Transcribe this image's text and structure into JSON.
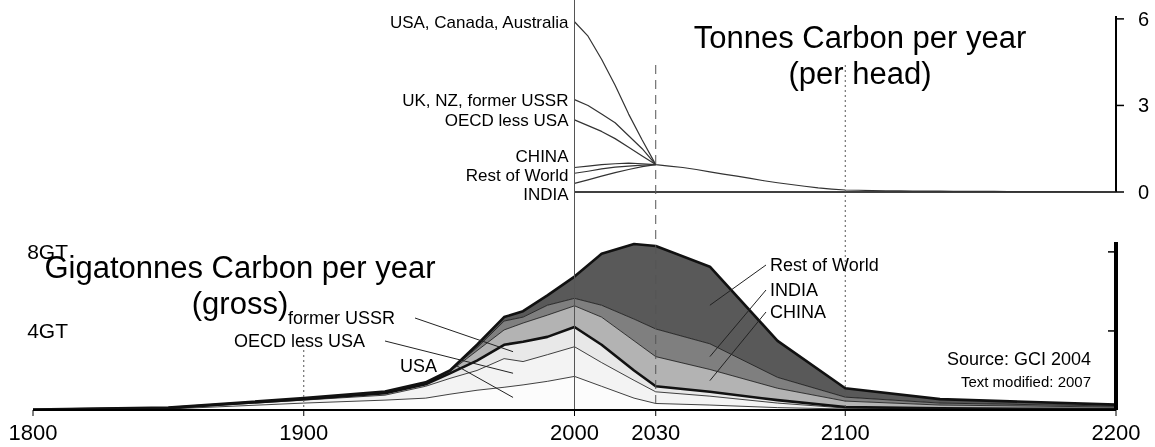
{
  "chart_data": [
    {
      "type": "line",
      "title": "Tonnes Carbon per year",
      "subtitle": "(per head)",
      "tick_labels": "y",
      "categories": [
        null,
        null,
        null,
        null,
        null,
        null,
        null,
        null,
        null,
        null,
        null,
        null,
        null,
        null,
        null,
        null,
        null,
        null,
        null,
        null,
        null,
        null,
        null,
        null,
        null,
        null,
        null,
        null,
        null,
        null,
        null,
        null,
        null,
        null,
        null,
        null,
        null,
        null,
        null,
        null,
        null
      ],
      "ylim": [
        0,
        6.1
      ],
      "yticks": [
        0,
        3,
        6
      ],
      "series": [
        {
          "name": "USA, Canada, Australia",
          "color": "#333333",
          "values": [
            5.9,
            5.4,
            4.6,
            3.7,
            2.7,
            1.8,
            0.95,
            0.9,
            0.85,
            0.78,
            0.7,
            0.62,
            0.55,
            0.47,
            0.39,
            0.32,
            0.26,
            0.2,
            0.14,
            0.1,
            0.07,
            0.06,
            0.05,
            0.04,
            0.04,
            0.03,
            0.03,
            0.03,
            0.02,
            0.02,
            0.02,
            0.02,
            0.01,
            0.01,
            0.01,
            0.01,
            0.01,
            0.01,
            0,
            0,
            0
          ]
        },
        {
          "name": "UK, NZ, former USSR",
          "color": "#333333",
          "values": [
            3.2,
            3.0,
            2.7,
            2.4,
            1.95,
            1.5,
            0.95,
            null,
            null,
            null,
            null,
            null,
            null,
            null,
            null,
            null,
            null,
            null,
            null,
            null,
            null,
            null,
            null,
            null,
            null,
            null,
            null,
            null,
            null,
            null,
            null,
            null,
            null,
            null,
            null,
            null,
            null,
            null,
            null,
            null,
            null
          ]
        },
        {
          "name": "OECD less USA",
          "color": "#333333",
          "values": [
            2.5,
            2.3,
            2.1,
            1.85,
            1.55,
            1.25,
            0.95,
            null,
            null,
            null,
            null,
            null,
            null,
            null,
            null,
            null,
            null,
            null,
            null,
            null,
            null,
            null,
            null,
            null,
            null,
            null,
            null,
            null,
            null,
            null,
            null,
            null,
            null,
            null,
            null,
            null,
            null,
            null,
            null,
            null,
            null
          ]
        },
        {
          "name": "CHINA",
          "color": "#333333",
          "values": [
            0.85,
            0.9,
            0.95,
            0.98,
            1.0,
            0.98,
            0.95,
            null,
            null,
            null,
            null,
            null,
            null,
            null,
            null,
            null,
            null,
            null,
            null,
            null,
            null,
            null,
            null,
            null,
            null,
            null,
            null,
            null,
            null,
            null,
            null,
            null,
            null,
            null,
            null,
            null,
            null,
            null,
            null,
            null,
            null
          ]
        },
        {
          "name": "Rest of World",
          "color": "#333333",
          "values": [
            0.65,
            0.72,
            0.8,
            0.86,
            0.9,
            0.93,
            0.95,
            null,
            null,
            null,
            null,
            null,
            null,
            null,
            null,
            null,
            null,
            null,
            null,
            null,
            null,
            null,
            null,
            null,
            null,
            null,
            null,
            null,
            null,
            null,
            null,
            null,
            null,
            null,
            null,
            null,
            null,
            null,
            null,
            null,
            null
          ]
        },
        {
          "name": "INDIA",
          "color": "#333333",
          "values": [
            0.3,
            0.42,
            0.55,
            0.67,
            0.78,
            0.88,
            0.95,
            null,
            null,
            null,
            null,
            null,
            null,
            null,
            null,
            null,
            null,
            null,
            null,
            null,
            null,
            null,
            null,
            null,
            null,
            null,
            null,
            null,
            null,
            null,
            null,
            null,
            null,
            null,
            null,
            null,
            null,
            null,
            null,
            null,
            null
          ]
        }
      ]
    },
    {
      "type": "area",
      "stacked": true,
      "title": "Gigatonnes Carbon per year",
      "subtitle": "(gross)",
      "x": [
        1800,
        1850,
        1900,
        1930,
        1945,
        1954,
        1964,
        1974,
        1981,
        1990,
        2000,
        2010,
        2022,
        2030,
        2050,
        2075,
        2100,
        2135,
        2200
      ],
      "xlim": [
        1800,
        2200
      ],
      "xticks": [
        1800,
        1900,
        2000,
        2030,
        2100,
        2200
      ],
      "ylim": [
        0,
        8.5
      ],
      "yticks": [
        {
          "value": 4,
          "label": "4GT"
        },
        {
          "value": 8,
          "label": "8GT"
        }
      ],
      "series": [
        {
          "name": "USA",
          "color": "#fcfcfc",
          "values": [
            0,
            0.05,
            0.35,
            0.5,
            0.6,
            0.8,
            1.0,
            1.15,
            1.27,
            1.45,
            1.7,
            1.2,
            0.6,
            0.33,
            0.25,
            0.12,
            0.05,
            0.03,
            0.02
          ]
        },
        {
          "name": "OECD less USA",
          "color": "#f3f3f3",
          "values": [
            0.01,
            0.03,
            0.15,
            0.25,
            0.6,
            0.8,
            1.0,
            1.45,
            1.18,
            1.35,
            1.5,
            1.2,
            0.9,
            0.59,
            0.45,
            0.23,
            0.05,
            0.03,
            0.02
          ]
        },
        {
          "name": "former USSR",
          "color": "#e8e8e8",
          "values": [
            0,
            0.02,
            0.05,
            0.1,
            0.1,
            0.25,
            0.5,
            0.7,
            1.0,
            0.9,
            1.0,
            0.9,
            0.5,
            0.28,
            0.22,
            0.15,
            0.05,
            0.02,
            0.01
          ]
        },
        {
          "name": "CHINA",
          "color": "#b3b3b3",
          "values": [
            0,
            0,
            0.02,
            0.03,
            0.05,
            0.1,
            0.5,
            0.75,
            0.95,
            1.1,
            1.07,
            1.4,
            1.5,
            1.5,
            1.13,
            0.6,
            0.3,
            0.17,
            0.1
          ]
        },
        {
          "name": "INDIA",
          "color": "#7f7f7f",
          "values": [
            0,
            0,
            0.01,
            0.02,
            0.03,
            0.05,
            0.15,
            0.45,
            0.3,
            0.5,
            0.38,
            0.6,
            1.1,
            1.4,
            1.3,
            0.55,
            0.2,
            0.1,
            0.05
          ]
        },
        {
          "name": "Rest of World",
          "color": "#595959",
          "values": [
            0.01,
            0.02,
            0.02,
            0.03,
            0.02,
            0,
            0.15,
            0.2,
            0.3,
            0.5,
            1.1,
            2.6,
            3.8,
            4.2,
            3.9,
            1.85,
            0.45,
            0.2,
            0.07
          ]
        }
      ],
      "ref_lines": [
        {
          "axis": "x",
          "value": 1900,
          "line_style": "dotted"
        },
        {
          "axis": "x",
          "value": 2000,
          "line_style": "solid"
        },
        {
          "axis": "x",
          "value": 2030,
          "line_style": "dashed"
        },
        {
          "axis": "x",
          "value": 2100,
          "line_style": "dotted"
        }
      ],
      "annotations": [
        "Source:  GCI 2004",
        "Text modified: 2007"
      ]
    }
  ]
}
